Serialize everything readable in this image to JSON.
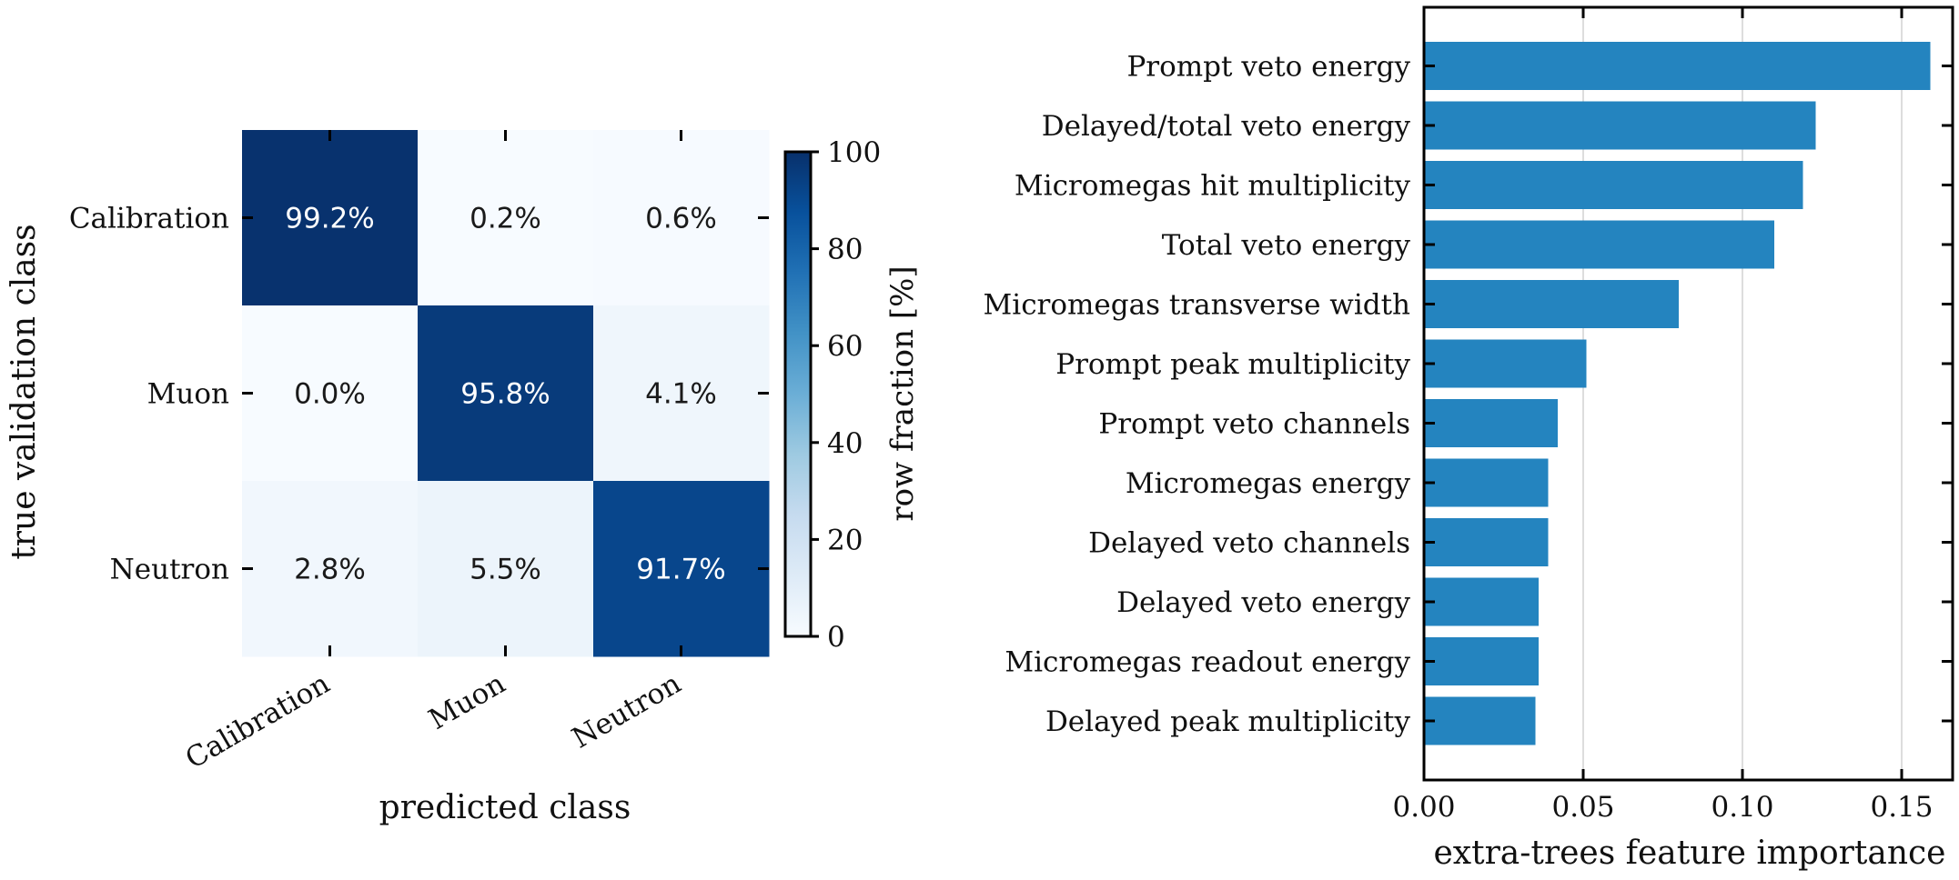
{
  "chart_data": [
    {
      "type": "heatmap",
      "title": "",
      "xlabel": "predicted class",
      "ylabel": "true validation class",
      "x_categories": [
        "Calibration",
        "Muon",
        "Neutron"
      ],
      "y_categories": [
        "Calibration",
        "Muon",
        "Neutron"
      ],
      "values": [
        [
          99.2,
          0.2,
          0.6
        ],
        [
          0.0,
          95.8,
          4.1
        ],
        [
          2.8,
          5.5,
          91.7
        ]
      ],
      "cell_labels": [
        [
          "99.2%",
          "0.2%",
          "0.6%"
        ],
        [
          "0.0%",
          "95.8%",
          "4.1%"
        ],
        [
          "2.8%",
          "5.5%",
          "91.7%"
        ]
      ],
      "colormap": "Blues",
      "colorbar": {
        "label": "row fraction [%]",
        "range": [
          0,
          100
        ],
        "ticks": [
          0,
          20,
          40,
          60,
          80,
          100
        ]
      }
    },
    {
      "type": "bar",
      "orientation": "horizontal",
      "title": "",
      "xlabel": "extra-trees feature importance",
      "ylabel": "",
      "xlim": [
        0,
        0.166
      ],
      "xticks": [
        "0.00",
        "0.05",
        "0.10",
        "0.15"
      ],
      "xtick_values": [
        0,
        0.05,
        0.1,
        0.15
      ],
      "grid": "vertical",
      "color": "#2484bf",
      "categories": [
        "Prompt veto energy",
        "Delayed/total veto energy",
        "Micromegas hit multiplicity",
        "Total veto energy",
        "Micromegas transverse width",
        "Prompt peak multiplicity",
        "Prompt veto channels",
        "Micromegas energy",
        "Delayed veto channels",
        "Delayed veto energy",
        "Micromegas readout energy",
        "Delayed peak multiplicity"
      ],
      "values": [
        0.159,
        0.123,
        0.119,
        0.11,
        0.08,
        0.051,
        0.042,
        0.039,
        0.039,
        0.036,
        0.036,
        0.035
      ]
    }
  ]
}
